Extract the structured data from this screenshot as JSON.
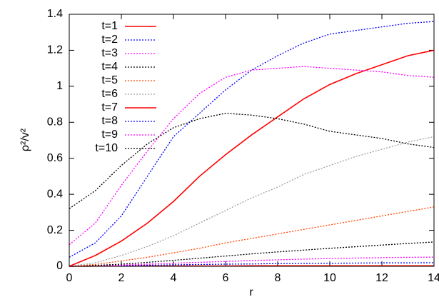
{
  "chart_data": {
    "type": "line",
    "xlabel": "r",
    "ylabel": "ρ²/v²",
    "x": [
      0,
      1,
      2,
      3,
      4,
      5,
      6,
      7,
      8,
      9,
      10,
      11,
      12,
      13,
      14
    ],
    "xlim": [
      0,
      14
    ],
    "xticks": [
      0,
      2,
      4,
      6,
      8,
      10,
      12,
      14
    ],
    "ylim": [
      0,
      1.4
    ],
    "yticks": [
      0,
      0.2,
      0.4,
      0.6,
      0.8,
      1,
      1.2,
      1.4
    ],
    "legend": "upper-left",
    "series": [
      {
        "name": "t=1",
        "color": "#ff0000",
        "dash": "solid",
        "values": [
          0,
          0.001,
          0.001,
          0.002,
          0.002,
          0.002,
          0.002,
          0.003,
          0.003,
          0.003,
          0.003,
          0.003,
          0.003,
          0.003,
          0.003
        ]
      },
      {
        "name": "t=2",
        "color": "#0000ff",
        "dash": "dotted",
        "values": [
          0,
          0.002,
          0.004,
          0.006,
          0.008,
          0.01,
          0.012,
          0.013,
          0.015,
          0.016,
          0.017,
          0.018,
          0.019,
          0.019,
          0.02
        ]
      },
      {
        "name": "t=3",
        "color": "#ff00ff",
        "dash": "dotted",
        "values": [
          0,
          0.003,
          0.007,
          0.012,
          0.017,
          0.022,
          0.027,
          0.032,
          0.036,
          0.04,
          0.043,
          0.046,
          0.048,
          0.05,
          0.051
        ]
      },
      {
        "name": "t=4",
        "color": "#000000",
        "dash": "dotted",
        "values": [
          0,
          0.005,
          0.012,
          0.022,
          0.033,
          0.045,
          0.057,
          0.069,
          0.08,
          0.09,
          0.1,
          0.109,
          0.118,
          0.127,
          0.135
        ]
      },
      {
        "name": "t=5",
        "color": "#ff4500",
        "dash": "dotted",
        "values": [
          0,
          0.01,
          0.03,
          0.05,
          0.075,
          0.1,
          0.13,
          0.155,
          0.18,
          0.205,
          0.23,
          0.255,
          0.28,
          0.305,
          0.33
        ]
      },
      {
        "name": "t=6",
        "color": "#a0a0a0",
        "dash": "dotted",
        "values": [
          0,
          0.02,
          0.06,
          0.11,
          0.17,
          0.24,
          0.31,
          0.38,
          0.44,
          0.51,
          0.56,
          0.61,
          0.65,
          0.69,
          0.72
        ]
      },
      {
        "name": "t=7",
        "color": "#ff0000",
        "dash": "solid",
        "values": [
          0,
          0.06,
          0.14,
          0.24,
          0.36,
          0.5,
          0.62,
          0.73,
          0.83,
          0.93,
          1.01,
          1.07,
          1.12,
          1.17,
          1.2
        ]
      },
      {
        "name": "t=8",
        "color": "#0000ff",
        "dash": "dotted",
        "values": [
          0.05,
          0.13,
          0.28,
          0.5,
          0.72,
          0.85,
          0.98,
          1.09,
          1.17,
          1.24,
          1.29,
          1.31,
          1.33,
          1.35,
          1.36
        ]
      },
      {
        "name": "t=9",
        "color": "#ff00ff",
        "dash": "dotted",
        "values": [
          0.12,
          0.24,
          0.45,
          0.64,
          0.82,
          0.96,
          1.05,
          1.09,
          1.1,
          1.11,
          1.1,
          1.09,
          1.08,
          1.06,
          1.05
        ]
      },
      {
        "name": "t=10",
        "color": "#000000",
        "dash": "dotted",
        "values": [
          0.32,
          0.42,
          0.56,
          0.68,
          0.77,
          0.82,
          0.85,
          0.84,
          0.82,
          0.79,
          0.75,
          0.73,
          0.71,
          0.68,
          0.66
        ]
      }
    ]
  }
}
